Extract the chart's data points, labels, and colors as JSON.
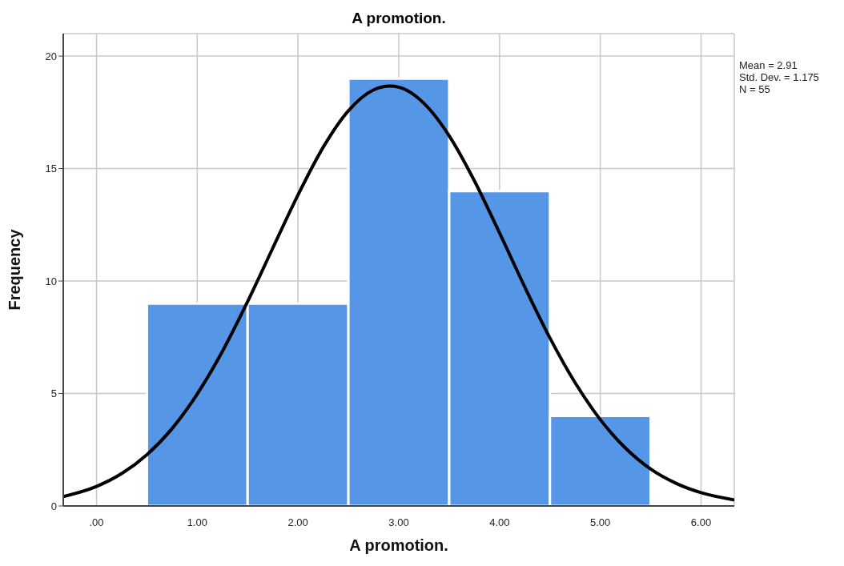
{
  "chart_data": {
    "type": "histogram",
    "title": "A promotion.",
    "xlabel": "A promotion.",
    "ylabel": "Frequency",
    "bins": [
      0.5,
      1.5,
      2.5,
      3.5,
      4.5,
      5.5
    ],
    "values": [
      9,
      9,
      19,
      14,
      4
    ],
    "color": "#5596e6",
    "series": [
      {
        "type": "line",
        "color": "#000000",
        "x": [
          -0.33,
          0,
          0.25,
          0.5,
          0.75,
          1,
          1.25,
          1.5,
          1.75,
          2,
          2.25,
          2.5,
          2.75,
          2.91,
          3,
          3.25,
          3.5,
          3.75,
          4,
          4.25,
          4.5,
          4.75,
          5,
          5.25,
          5.5,
          5.75,
          6,
          6.33
        ],
        "values": [
          0.42,
          0.87,
          1.44,
          2.28,
          3.44,
          4.98,
          6.88,
          9.09,
          11.47,
          13.83,
          15.95,
          17.57,
          18.5,
          18.67,
          18.62,
          17.9,
          16.46,
          14.46,
          12.14,
          9.74,
          7.47,
          5.48,
          3.84,
          2.57,
          1.64,
          1.01,
          0.59,
          0.27
        ]
      }
    ],
    "xlim": [
      -0.33,
      6.33
    ],
    "xticks": [
      {
        "value": 0,
        "label": ".00"
      },
      {
        "value": 1,
        "label": "1.00"
      },
      {
        "value": 2,
        "label": "2.00"
      },
      {
        "value": 3,
        "label": "3.00"
      },
      {
        "value": 4,
        "label": "4.00"
      },
      {
        "value": 5,
        "label": "5.00"
      },
      {
        "value": 6,
        "label": "6.00"
      }
    ],
    "ylim": [
      0,
      21
    ],
    "yticks": [
      0,
      5,
      10,
      15,
      20
    ],
    "grid": true,
    "annotations": [
      "Mean = 2.91",
      "Std. Dev. = 1.175",
      "N = 55"
    ]
  }
}
